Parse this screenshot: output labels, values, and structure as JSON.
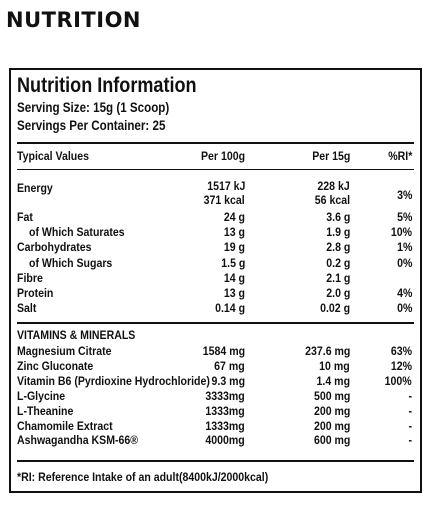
{
  "heading": "NUTRITION",
  "panel": {
    "title": "Nutrition Information",
    "serving_size": "Serving Size: 15g (1 Scoop)",
    "servings_per_container": "Servings Per Container: 25",
    "columns": [
      "Typical Values",
      "Per 100g",
      "Per 15g",
      "%RI*"
    ],
    "energy": {
      "label": "Energy",
      "per100_kj": "1517 kJ",
      "per100_kcal": "371 kcal",
      "per15_kj": "228 kJ",
      "per15_kcal": "56 kcal",
      "ri": "3%"
    },
    "macros": [
      {
        "label": "Fat",
        "per100": "24 g",
        "per15": "3.6 g",
        "ri": "5%",
        "indent": false
      },
      {
        "label": "of Which Saturates",
        "per100": "13 g",
        "per15": "1.9 g",
        "ri": "10%",
        "indent": true
      },
      {
        "label": "Carbohydrates",
        "per100": "19 g",
        "per15": "2.8 g",
        "ri": "1%",
        "indent": false
      },
      {
        "label": "of Which Sugars",
        "per100": "1.5 g",
        "per15": "0.2 g",
        "ri": "0%",
        "indent": true
      },
      {
        "label": "Fibre",
        "per100": "14 g",
        "per15": "2.1 g",
        "ri": "",
        "indent": false
      },
      {
        "label": "Protein",
        "per100": "13 g",
        "per15": "2.0 g",
        "ri": "4%",
        "indent": false
      },
      {
        "label": "Salt",
        "per100": "0.14 g",
        "per15": "0.02 g",
        "ri": "0%",
        "indent": false
      }
    ],
    "vitamins_title": "VITAMINS & MINERALS",
    "vitamins": [
      {
        "label": "Magnesium Citrate",
        "per100": "1584 mg",
        "per15": "237.6 mg",
        "ri": "63%"
      },
      {
        "label": "Zinc Gluconate",
        "per100": "67 mg",
        "per15": "10 mg",
        "ri": "12%"
      },
      {
        "label": "Vitamin B6 (Pyrdioxine Hydrochloride)",
        "per100": "9.3 mg",
        "per15": "1.4 mg",
        "ri": "100%"
      },
      {
        "label": "L-Glycine",
        "per100": "3333mg",
        "per15": "500 mg",
        "ri": "-"
      },
      {
        "label": "L-Theanine",
        "per100": "1333mg",
        "per15": "200 mg",
        "ri": "-"
      },
      {
        "label": "Chamomile Extract",
        "per100": "1333mg",
        "per15": "200 mg",
        "ri": "-"
      },
      {
        "label": "Ashwagandha KSM-66®",
        "per100": "4000mg",
        "per15": "600 mg",
        "ri": "-"
      }
    ],
    "footnote": "*RI: Reference Intake of an adult(8400kJ/2000kcal)"
  }
}
